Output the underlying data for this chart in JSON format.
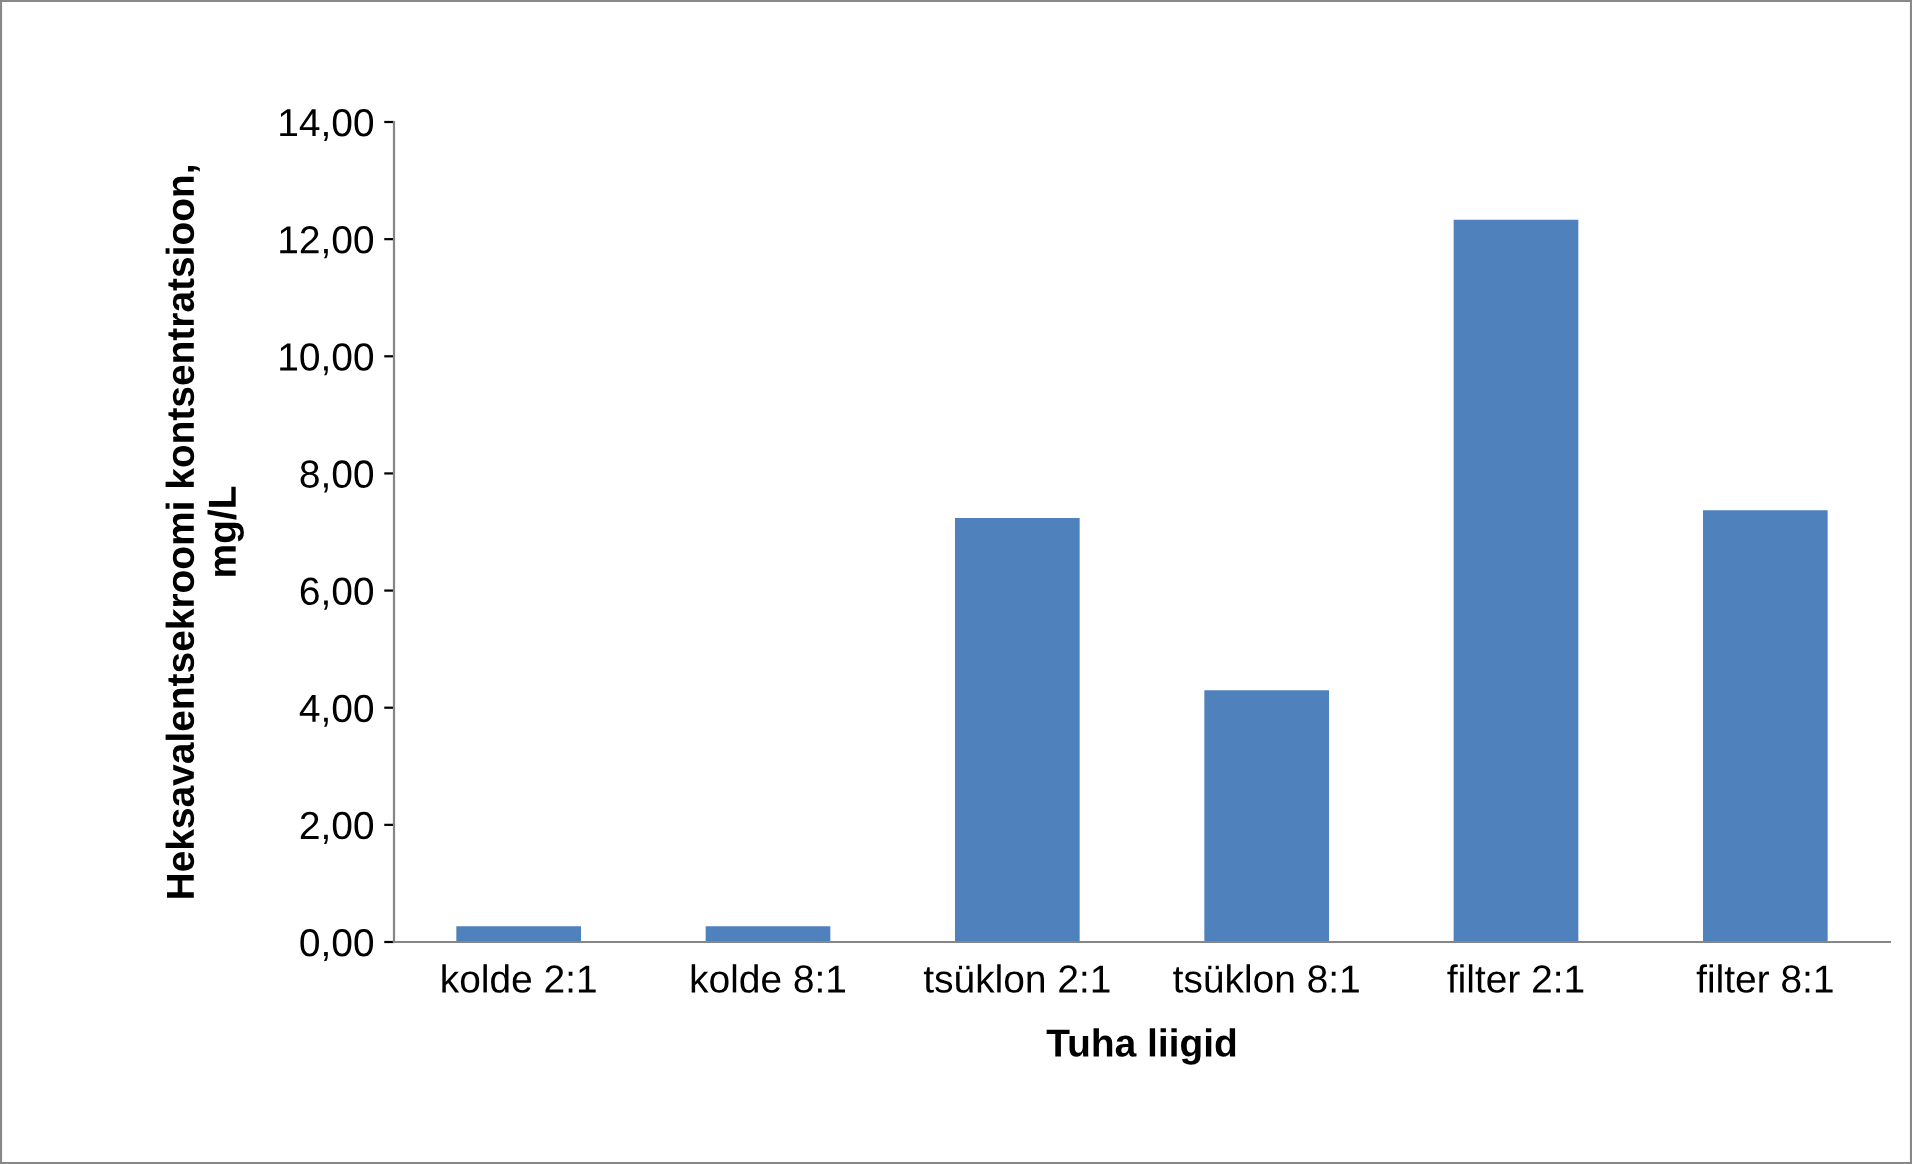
{
  "chart_data": {
    "type": "bar",
    "xlabel": "Tuha liigid",
    "ylabel": "Heksavalentsekroomi kontsentratsioon,\nmg/L",
    "categories": [
      "kolde 2:1",
      "kolde 8:1",
      "tsüklon 2:1",
      "tsüklon 8:1",
      "filter 2:1",
      "filter 8:1"
    ],
    "values": [
      0.27,
      0.27,
      7.24,
      4.3,
      12.33,
      7.37
    ],
    "color": "#4f81bd",
    "ylim": [
      0,
      14
    ],
    "yticks": [
      {
        "value": 0,
        "label": "0,00"
      },
      {
        "value": 2,
        "label": "2,00"
      },
      {
        "value": 4,
        "label": "4,00"
      },
      {
        "value": 6,
        "label": "6,00"
      },
      {
        "value": 8,
        "label": "8,00"
      },
      {
        "value": 10,
        "label": "10,00"
      },
      {
        "value": 12,
        "label": "12,00"
      },
      {
        "value": 14,
        "label": "14,00"
      }
    ],
    "grid": false,
    "legend": false
  }
}
